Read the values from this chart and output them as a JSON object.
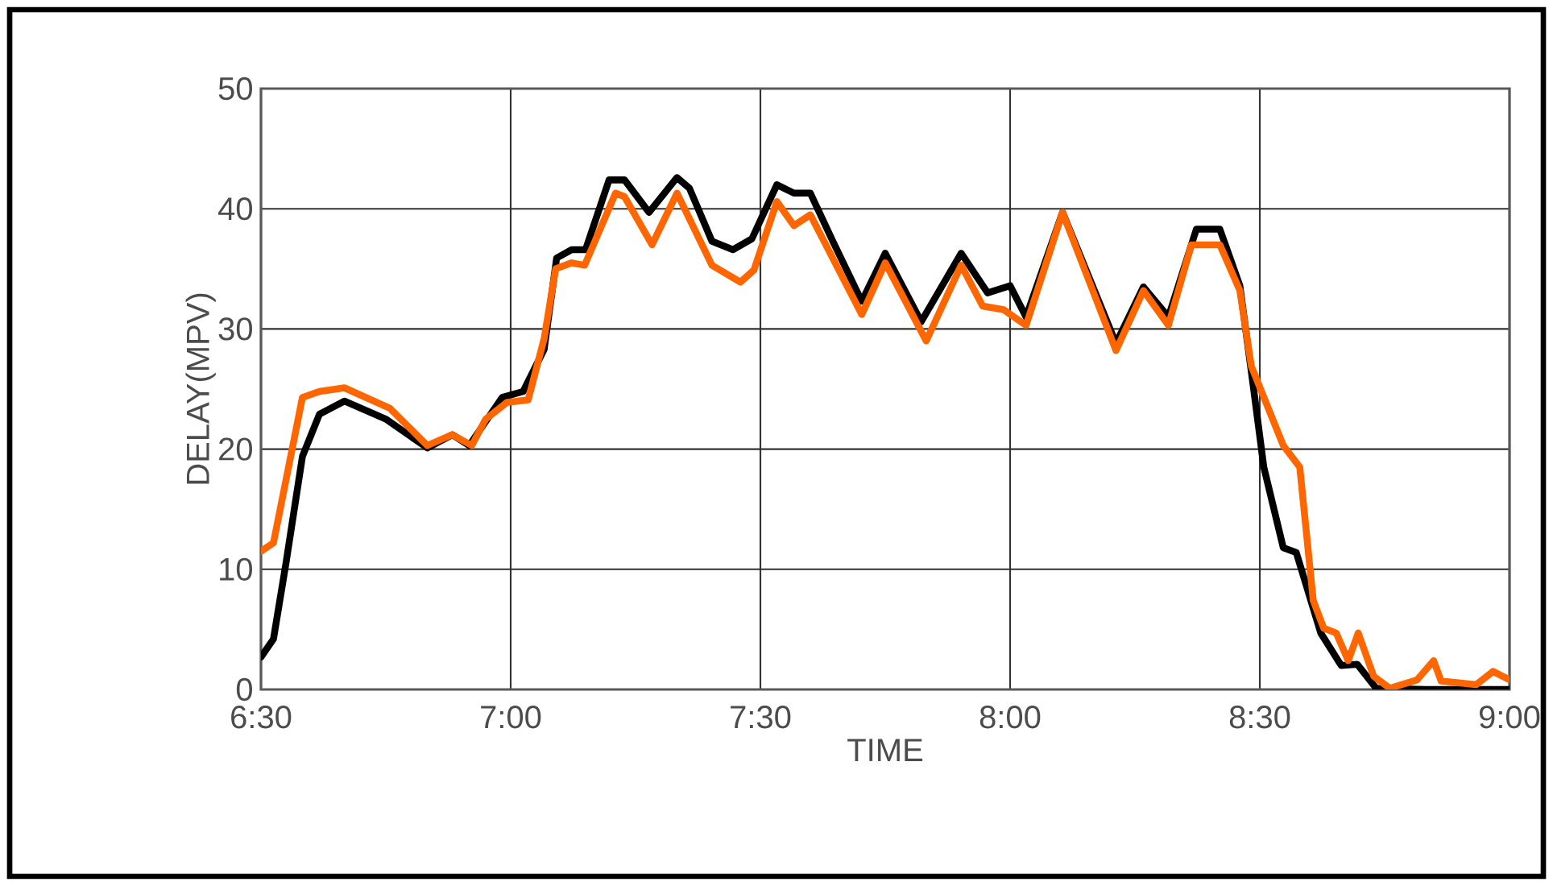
{
  "chart_data": {
    "type": "line",
    "xlabel": "TIME",
    "ylabel": "DELAY(MPV)",
    "xlim": [
      6.5,
      9.0
    ],
    "ylim": [
      0,
      50
    ],
    "xticks": [
      {
        "value": 6.5,
        "label": "6:30"
      },
      {
        "value": 7.0,
        "label": "7:00"
      },
      {
        "value": 7.5,
        "label": "7:30"
      },
      {
        "value": 8.0,
        "label": "8:00"
      },
      {
        "value": 8.5,
        "label": "8:30"
      },
      {
        "value": 9.0,
        "label": "9:00"
      }
    ],
    "yticks": [
      0,
      10,
      20,
      30,
      40,
      50
    ],
    "grid": true,
    "marker": "none",
    "line_style": "solid",
    "series": [
      {
        "color": "#000000",
        "x": [
          6.5,
          6.525,
          6.55,
          6.583,
          6.617,
          6.667,
          6.75,
          6.833,
          6.883,
          6.917,
          6.983,
          7.025,
          7.067,
          7.092,
          7.122,
          7.15,
          7.197,
          7.228,
          7.277,
          7.333,
          7.358,
          7.403,
          7.445,
          7.483,
          7.533,
          7.567,
          7.6,
          7.645,
          7.703,
          7.75,
          7.822,
          7.902,
          7.955,
          8.0,
          8.032,
          8.105,
          8.212,
          8.267,
          8.317,
          8.373,
          8.42,
          8.46,
          8.487,
          8.508,
          8.547,
          8.573,
          8.622,
          8.663,
          8.695,
          8.733,
          8.833,
          9.0
        ],
        "values": [
          2.7,
          4.2,
          10.5,
          19.4,
          22.9,
          24.0,
          22.5,
          20.1,
          21.2,
          20.3,
          24.3,
          24.8,
          28.3,
          35.9,
          36.6,
          36.6,
          42.4,
          42.4,
          39.7,
          42.6,
          41.7,
          37.3,
          36.6,
          37.5,
          42.0,
          41.3,
          41.3,
          37.3,
          32.3,
          36.3,
          30.6,
          36.3,
          33.0,
          33.6,
          31.0,
          39.7,
          28.8,
          33.5,
          31.0,
          38.3,
          38.3,
          33.6,
          25.2,
          18.5,
          11.8,
          11.4,
          4.7,
          2.0,
          2.1,
          0.1,
          0,
          0
        ]
      },
      {
        "color": "#ff6600",
        "x": [
          6.5,
          6.525,
          6.583,
          6.617,
          6.667,
          6.758,
          6.833,
          6.883,
          6.922,
          6.95,
          6.993,
          7.035,
          7.067,
          7.09,
          7.122,
          7.148,
          7.21,
          7.228,
          7.283,
          7.333,
          7.403,
          7.46,
          7.487,
          7.533,
          7.567,
          7.6,
          7.703,
          7.75,
          7.832,
          7.902,
          7.945,
          7.987,
          8.032,
          8.105,
          8.212,
          8.267,
          8.317,
          8.363,
          8.42,
          8.46,
          8.483,
          8.547,
          8.58,
          8.607,
          8.628,
          8.653,
          8.677,
          8.697,
          8.728,
          8.76,
          8.815,
          8.848,
          8.863,
          8.933,
          8.967,
          9.0
        ],
        "values": [
          11.5,
          12.2,
          24.3,
          24.8,
          25.1,
          23.4,
          20.3,
          21.2,
          20.3,
          22.5,
          23.9,
          24.1,
          29.2,
          35.0,
          35.5,
          35.3,
          41.3,
          41.0,
          37.0,
          41.3,
          35.3,
          33.9,
          34.9,
          40.6,
          38.6,
          39.5,
          31.2,
          35.5,
          29.0,
          35.3,
          31.9,
          31.6,
          30.3,
          39.7,
          28.2,
          33.2,
          30.3,
          37.0,
          37.0,
          33.2,
          26.9,
          20.3,
          18.5,
          7.4,
          5.1,
          4.7,
          2.4,
          4.7,
          1.1,
          0.1,
          0.8,
          2.4,
          0.7,
          0.4,
          1.5,
          0.8
        ]
      }
    ]
  }
}
